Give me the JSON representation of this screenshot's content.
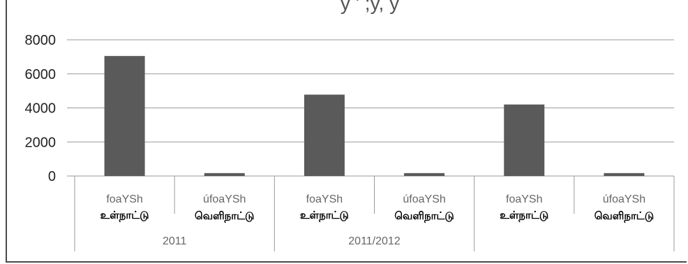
{
  "chart_data": {
    "type": "bar",
    "title": "y ' ;y, y",
    "categories": [
      "foaYSh",
      "úfoaYSh",
      "foaYSh",
      "úfoaYSh",
      "foaYSh",
      "úfoaYSh"
    ],
    "tamil_labels": [
      "உள்நாட்டு",
      "வெளிநாட்டு",
      "உள்நாட்டு",
      "வெளிநாட்டு",
      "உள்நாட்டு",
      "வெளிநாட்டு"
    ],
    "groups": [
      "2011",
      "2011/2012",
      ""
    ],
    "values": [
      7050,
      170,
      4780,
      170,
      4200,
      170
    ],
    "ylim": [
      0,
      8000
    ],
    "yticks": [
      "0",
      "2000",
      "4000",
      "6000",
      "8000"
    ],
    "grid": true,
    "bar_color": "#5a5a5a",
    "grid_color": "#9a9a9a"
  }
}
